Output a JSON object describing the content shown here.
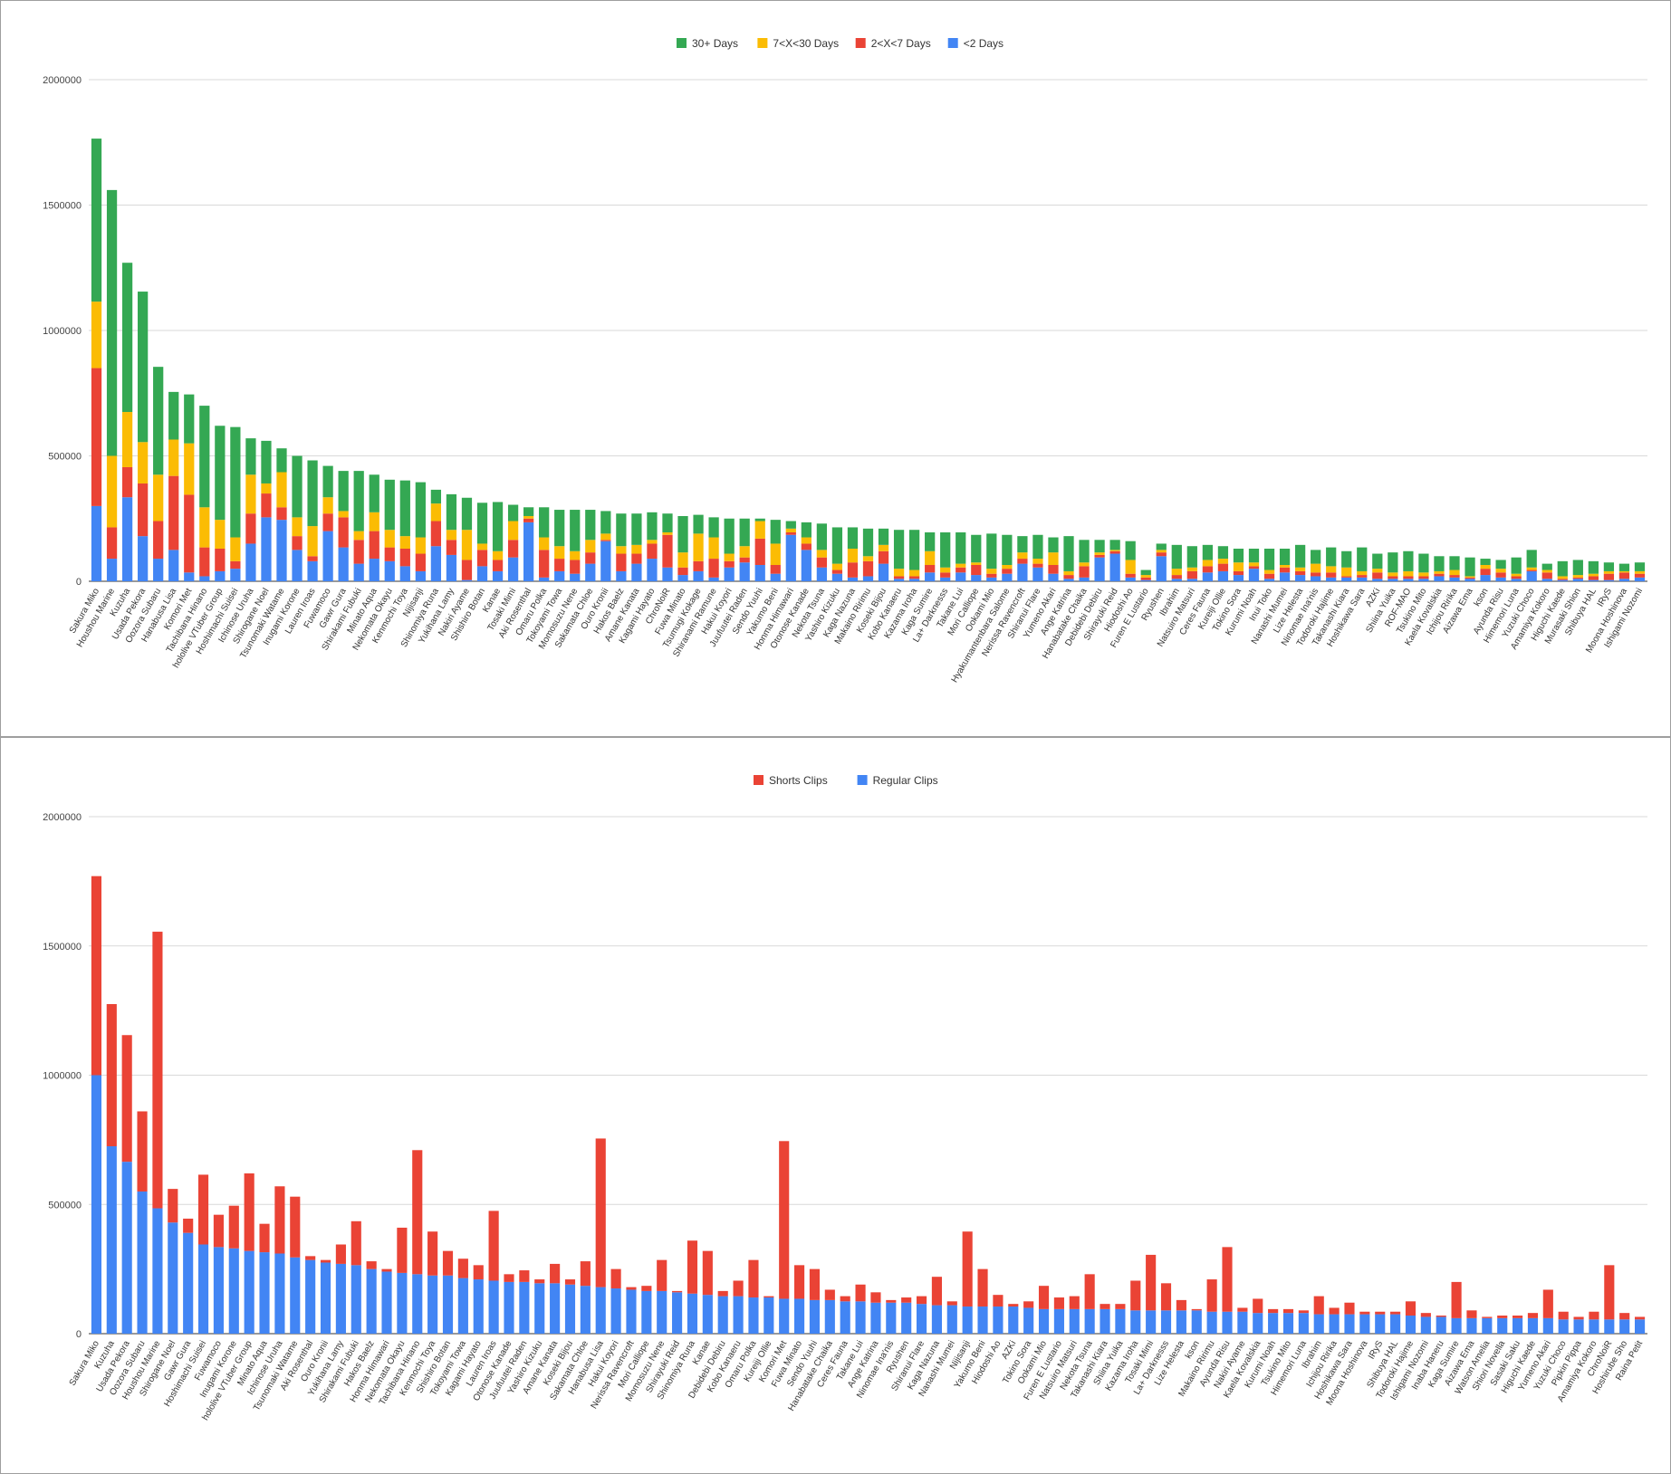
{
  "chart_data": [
    {
      "type": "bar",
      "stacked": true,
      "legend_position": "top",
      "grid": true,
      "ylim": [
        0,
        2000000
      ],
      "yticks": [
        0,
        500000,
        1000000,
        1500000,
        2000000
      ],
      "ytick_labels": [
        "0",
        "500000",
        "1000000",
        "1500000",
        "2000000"
      ],
      "colors": [
        "#34a853",
        "#fbbc04",
        "#ea4335",
        "#4285f4"
      ],
      "categories": [
        "Sakura Miko",
        "Houshou Marine",
        "Kuzuha",
        "Usada Pekora",
        "Oozora Subaru",
        "Hanabusa Lisa",
        "Komori Met",
        "Tachibana Hinano",
        "hololive VTuber Group",
        "Hoshimachi Suisei",
        "Ichinose Uruha",
        "Shirogane Noel",
        "Tsunomaki Watame",
        "Inugami Korone",
        "Lauren Iroas",
        "Fuwamoco",
        "Gawr Gura",
        "Shirakami Fubuki",
        "Minato Aqua",
        "Nekomata Okayu",
        "Kenmochi Toya",
        "Nijisanji",
        "Shinomiya Runa",
        "Yukihana Lamy",
        "Nakiri Ayame",
        "Shishiro Botan",
        "Kanae",
        "Tosaki Mimi",
        "Aki Rosenthal",
        "Omaru Polka",
        "Tokoyami Towa",
        "Momosuzu Nene",
        "Sakamata Chloe",
        "Ouro Kronii",
        "Hakos Baelz",
        "Amane Kanata",
        "Kagami Hayato",
        "ChroNoiR",
        "Fuwa Minato",
        "Tsumugi Kokage",
        "Shiranami Ramune",
        "Hakui Koyori",
        "Juufuutei Raden",
        "Sendo Yuuhi",
        "Yakumo Beni",
        "Honma Himawari",
        "Otonose Kanade",
        "Nekota Tsuna",
        "Yashiro Kizuku",
        "Kaga Nazuna",
        "Makaino Ririmu",
        "Koseki Bijou",
        "Kobo Kanaeru",
        "Kazama Iroha",
        "Kaga Sumire",
        "La+ Darknesss",
        "Takane Lui",
        "Mori Calliope",
        "Ookami Mio",
        "Hyakumantenbara Salome",
        "Nerissa Ravencroft",
        "Shiranui Flare",
        "Yumeno Akari",
        "Ange Katrina",
        "Hanabatake Chaika",
        "Debidebi Debiru",
        "Shirayuki Reid",
        "Hiodoshi Ao",
        "Furen E Lustario",
        "Ryushen",
        "Ibrahim",
        "Natsuiro Matsuri",
        "Ceres Fauna",
        "Kureiji Ollie",
        "Tokino Sora",
        "Kurumi Noah",
        "Inui Toko",
        "Nanashi Mumei",
        "Lize Helesta",
        "Ninomae Ina'nis",
        "Todoroki Hajime",
        "Takanashi Kiara",
        "Hoshikawa Sara",
        "AZKi",
        "Shiina Yuika",
        "ROF-MAO",
        "Tsukino Mito",
        "Kaela Kovalskia",
        "Ichijou Ririka",
        "Aizawa Ema",
        "kson",
        "Ayunda Risu",
        "Himemori Luna",
        "Yuzuki Choco",
        "Amamiya Kokoro",
        "Higuchi Kaede",
        "Murasaki Shion",
        "Shibuya HAL",
        "IRyS",
        "Moona Hoshinova",
        "Ishigami Nozomi"
      ],
      "series": [
        {
          "name": "30+ Days",
          "values": [
            650000,
            1060000,
            595000,
            600000,
            430000,
            190000,
            195000,
            405000,
            375000,
            440000,
            145000,
            170000,
            95000,
            245000,
            262000,
            125000,
            160000,
            240000,
            150000,
            200000,
            222000,
            220000,
            55000,
            142000,
            128000,
            163000,
            196000,
            65000,
            35000,
            120000,
            145000,
            165000,
            120000,
            90000,
            130000,
            125000,
            110000,
            75000,
            145000,
            75000,
            80000,
            140000,
            110000,
            10000,
            95000,
            30000,
            60000,
            105000,
            145000,
            85000,
            110000,
            65000,
            155000,
            160000,
            75000,
            140000,
            125000,
            110000,
            140000,
            120000,
            65000,
            95000,
            60000,
            140000,
            90000,
            50000,
            40000,
            75000,
            20000,
            25000,
            95000,
            85000,
            60000,
            50000,
            55000,
            55000,
            85000,
            65000,
            90000,
            55000,
            75000,
            65000,
            95000,
            60000,
            80000,
            80000,
            75000,
            60000,
            55000,
            75000,
            25000,
            35000,
            65000,
            70000,
            25000,
            60000,
            60000,
            50000,
            35000,
            30000,
            35000
          ]
        },
        {
          "name": "7<X<30 Days",
          "values": [
            265000,
            285000,
            220000,
            165000,
            185000,
            145000,
            205000,
            160000,
            115000,
            95000,
            155000,
            40000,
            140000,
            75000,
            120000,
            65000,
            25000,
            35000,
            75000,
            70000,
            50000,
            65000,
            70000,
            40000,
            120000,
            25000,
            35000,
            75000,
            10000,
            50000,
            50000,
            35000,
            50000,
            25000,
            30000,
            35000,
            15000,
            10000,
            60000,
            110000,
            85000,
            30000,
            45000,
            70000,
            85000,
            15000,
            25000,
            30000,
            25000,
            55000,
            20000,
            25000,
            30000,
            25000,
            55000,
            20000,
            15000,
            10000,
            20000,
            15000,
            25000,
            20000,
            50000,
            15000,
            15000,
            10000,
            5000,
            55000,
            10000,
            10000,
            25000,
            15000,
            25000,
            20000,
            35000,
            15000,
            15000,
            10000,
            15000,
            35000,
            25000,
            35000,
            15000,
            15000,
            15000,
            20000,
            15000,
            10000,
            20000,
            5000,
            15000,
            15000,
            10000,
            10000,
            10000,
            10000,
            10000,
            10000,
            10000,
            5000,
            10000
          ]
        },
        {
          "name": "2<X<7 Days",
          "values": [
            550000,
            125000,
            120000,
            210000,
            150000,
            295000,
            310000,
            115000,
            90000,
            30000,
            120000,
            95000,
            50000,
            55000,
            20000,
            70000,
            120000,
            95000,
            110000,
            55000,
            70000,
            70000,
            100000,
            60000,
            80000,
            65000,
            45000,
            70000,
            15000,
            110000,
            50000,
            55000,
            45000,
            5000,
            70000,
            40000,
            60000,
            130000,
            30000,
            40000,
            75000,
            25000,
            20000,
            105000,
            35000,
            10000,
            25000,
            40000,
            15000,
            60000,
            60000,
            50000,
            10000,
            10000,
            30000,
            20000,
            20000,
            40000,
            15000,
            20000,
            20000,
            15000,
            35000,
            15000,
            45000,
            10000,
            10000,
            15000,
            10000,
            15000,
            15000,
            30000,
            25000,
            30000,
            15000,
            10000,
            20000,
            20000,
            15000,
            15000,
            20000,
            5000,
            10000,
            25000,
            10000,
            10000,
            10000,
            10000,
            10000,
            5000,
            25000,
            20000,
            10000,
            5000,
            25000,
            5000,
            5000,
            15000,
            25000,
            25000,
            15000
          ]
        },
        {
          "name": "<2 Days",
          "values": [
            300000,
            90000,
            335000,
            180000,
            90000,
            125000,
            35000,
            20000,
            40000,
            50000,
            150000,
            255000,
            245000,
            125000,
            80000,
            200000,
            135000,
            70000,
            90000,
            80000,
            60000,
            40000,
            140000,
            105000,
            5000,
            60000,
            40000,
            95000,
            235000,
            15000,
            40000,
            30000,
            70000,
            160000,
            40000,
            70000,
            90000,
            55000,
            25000,
            40000,
            15000,
            55000,
            75000,
            65000,
            30000,
            185000,
            125000,
            55000,
            30000,
            15000,
            20000,
            70000,
            10000,
            10000,
            35000,
            15000,
            35000,
            25000,
            15000,
            30000,
            70000,
            55000,
            30000,
            10000,
            15000,
            95000,
            110000,
            15000,
            5000,
            100000,
            10000,
            10000,
            35000,
            40000,
            25000,
            50000,
            10000,
            35000,
            25000,
            20000,
            15000,
            15000,
            15000,
            10000,
            10000,
            10000,
            10000,
            20000,
            15000,
            10000,
            25000,
            15000,
            10000,
            40000,
            10000,
            5000,
            10000,
            5000,
            5000,
            10000,
            15000
          ]
        }
      ]
    },
    {
      "type": "bar",
      "stacked": true,
      "legend_position": "top",
      "grid": true,
      "ylim": [
        0,
        2000000
      ],
      "yticks": [
        0,
        500000,
        1000000,
        1500000,
        2000000
      ],
      "ytick_labels": [
        "0",
        "500000",
        "1000000",
        "1500000",
        "2000000"
      ],
      "colors": [
        "#ea4335",
        "#4285f4"
      ],
      "categories": [
        "Sakura Miko",
        "Kuzuha",
        "Usada Pekora",
        "Oozora Subaru",
        "Houshou Marine",
        "Shirogane Noel",
        "Gawr Gura",
        "Hoshimachi Suisei",
        "Fuwamoco",
        "Inugami Korone",
        "hololive VTuber Group",
        "Minato Aqua",
        "Ichinose Uruha",
        "Tsunomaki Watame",
        "Aki Rosenthal",
        "Ouro Kronii",
        "Yukihana Lamy",
        "Shirakami Fubuki",
        "Hakos Baelz",
        "Honma Himawari",
        "Nekomata Okayu",
        "Tachibana Hinano",
        "Kenmochi Toya",
        "Shishiro Botan",
        "Tokoyami Towa",
        "Kagami Hayato",
        "Lauren Iroas",
        "Otonose Kanade",
        "Juufuutei Raden",
        "Yashiro Kizuku",
        "Amane Kanata",
        "Koseki Bijou",
        "Sakamata Chloe",
        "Hanabusa Lisa",
        "Hakui Koyori",
        "Nerissa Ravencroft",
        "Mori Calliope",
        "Momosuzu Nene",
        "Shirayuki Reid",
        "Shinomiya Runa",
        "Kanae",
        "Debidebi Debiru",
        "Kobo Kanaeru",
        "Omaru Polka",
        "Kureiji Ollie",
        "Komori Met",
        "Fuwa Minato",
        "Sendo Yuuhi",
        "Hanabatake Chaika",
        "Ceres Fauna",
        "Takane Lui",
        "Ange Katrina",
        "Ninomae Ina'nis",
        "Ryushen",
        "Shiranui Flare",
        "Kaga Nazuna",
        "Nanashi Mumei",
        "Nijisanji",
        "Yakumo Beni",
        "Hiodoshi Ao",
        "AZKi",
        "Tokino Sora",
        "Ookami Mio",
        "Furen E Lustario",
        "Natsuiro Matsuri",
        "Nekota Tsuna",
        "Takanashi Kiara",
        "Shiina Yuika",
        "Kazama Iroha",
        "Tosaki Mimi",
        "La+ Darknesss",
        "Lize Helesta",
        "kson",
        "Makaino Ririmu",
        "Ayunda Risu",
        "Nakiri Ayame",
        "Kaela Kovalskia",
        "Kurumi Noah",
        "Tsukino Mito",
        "Himemori Luna",
        "Ibrahim",
        "Ichijou Ririka",
        "Hoshikawa Sara",
        "Moona Hoshinova",
        "IRyS",
        "Shibuya HAL",
        "Todoroki Hajime",
        "Ishigami Nozomi",
        "Inaba Haneru",
        "Kaga Sumire",
        "Aizawa Ema",
        "Watson Amelia",
        "Shiori Novella",
        "Sasaki Saku",
        "Higuchi Kaede",
        "Yumeno Akari",
        "Yuzuki Choco",
        "Pipkin Pippa",
        "Amamiya Kokoro",
        "ChroNoiR",
        "Hoshirube Sho",
        "Raina Petit"
      ],
      "series": [
        {
          "name": "Shorts Clips",
          "values": [
            770000,
            550000,
            490000,
            310000,
            1070000,
            130000,
            55000,
            270000,
            125000,
            165000,
            300000,
            110000,
            260000,
            235000,
            15000,
            10000,
            75000,
            170000,
            30000,
            10000,
            175000,
            480000,
            170000,
            95000,
            75000,
            55000,
            270000,
            30000,
            45000,
            15000,
            75000,
            20000,
            95000,
            575000,
            75000,
            10000,
            20000,
            120000,
            5000,
            205000,
            170000,
            20000,
            60000,
            145000,
            5000,
            610000,
            130000,
            120000,
            40000,
            20000,
            65000,
            40000,
            10000,
            20000,
            30000,
            110000,
            15000,
            290000,
            145000,
            45000,
            10000,
            25000,
            90000,
            45000,
            50000,
            135000,
            20000,
            20000,
            115000,
            215000,
            105000,
            40000,
            5000,
            125000,
            250000,
            15000,
            55000,
            15000,
            15000,
            10000,
            70000,
            25000,
            45000,
            10000,
            10000,
            10000,
            55000,
            15000,
            5000,
            140000,
            30000,
            5000,
            10000,
            10000,
            20000,
            110000,
            30000,
            10000,
            30000,
            210000,
            25000,
            10000
          ]
        },
        {
          "name": "Regular Clips",
          "values": [
            1000000,
            725000,
            665000,
            550000,
            485000,
            430000,
            390000,
            345000,
            335000,
            330000,
            320000,
            315000,
            310000,
            295000,
            285000,
            275000,
            270000,
            265000,
            250000,
            240000,
            235000,
            230000,
            225000,
            225000,
            215000,
            210000,
            205000,
            200000,
            200000,
            195000,
            195000,
            190000,
            185000,
            180000,
            175000,
            170000,
            165000,
            165000,
            160000,
            155000,
            150000,
            145000,
            145000,
            140000,
            140000,
            135000,
            135000,
            130000,
            130000,
            125000,
            125000,
            120000,
            120000,
            120000,
            115000,
            110000,
            110000,
            105000,
            105000,
            105000,
            105000,
            100000,
            95000,
            95000,
            95000,
            95000,
            95000,
            95000,
            90000,
            90000,
            90000,
            90000,
            90000,
            85000,
            85000,
            85000,
            80000,
            80000,
            80000,
            80000,
            75000,
            75000,
            75000,
            75000,
            75000,
            75000,
            70000,
            65000,
            65000,
            60000,
            60000,
            60000,
            60000,
            60000,
            60000,
            60000,
            55000,
            55000,
            55000,
            55000,
            55000,
            55000
          ]
        }
      ]
    }
  ]
}
